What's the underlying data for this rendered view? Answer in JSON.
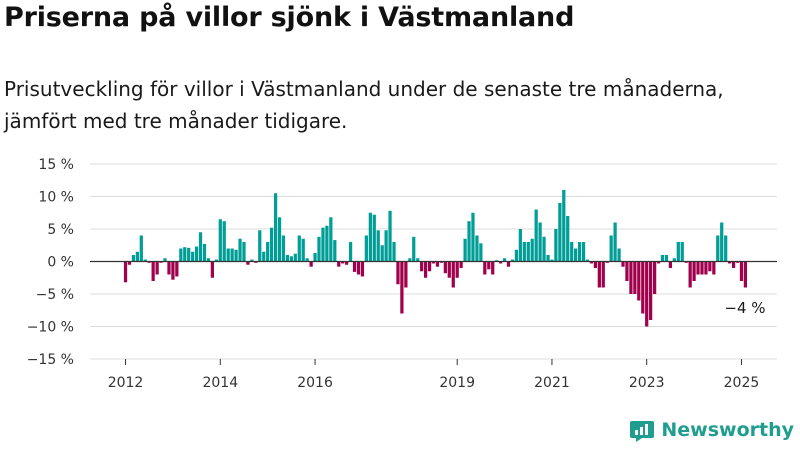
{
  "header": {
    "title": "Priserna på villor sjönk i Västmanland",
    "subtitle": "Prisutveckling för villor i Västmanland under de senaste tre månaderna, jämfört med tre månader tidigare."
  },
  "brand": {
    "name": "Newsworthy",
    "icon": "newsworthy-logo-icon"
  },
  "colors": {
    "positive": "#009e96",
    "negative": "#a0004c",
    "grid": "#dddddd",
    "axis": "#333333"
  },
  "chart_data": {
    "type": "bar",
    "y_ticks": [
      15,
      10,
      5,
      0,
      -5,
      -10,
      -15
    ],
    "y_tick_labels": [
      "15 %",
      "10 %",
      "5 %",
      "0 %",
      "−5 %",
      "−10 %",
      "−15 %"
    ],
    "ylim": [
      -15,
      15
    ],
    "x_ticks": [
      {
        "label": "2012",
        "x": 2012.0
      },
      {
        "label": "2014",
        "x": 2014.0
      },
      {
        "label": "2016",
        "x": 2016.0
      },
      {
        "label": "2019",
        "x": 2019.0
      },
      {
        "label": "2021",
        "x": 2021.0
      },
      {
        "label": "2023",
        "x": 2023.0
      },
      {
        "label": "2025",
        "x": 2025.0
      }
    ],
    "xlim": [
      2011.25,
      2025.75
    ],
    "annotation": "−4 %",
    "bars": [
      [
        2012.0,
        -3.2
      ],
      [
        2012.083,
        -0.5
      ],
      [
        2012.167,
        1.0
      ],
      [
        2012.25,
        1.5
      ],
      [
        2012.333,
        4.0
      ],
      [
        2012.417,
        0.3
      ],
      [
        2012.5,
        -0.2
      ],
      [
        2012.583,
        -3.0
      ],
      [
        2012.667,
        -2.0
      ],
      [
        2012.75,
        -0.2
      ],
      [
        2012.833,
        0.5
      ],
      [
        2012.917,
        -2.0
      ],
      [
        2013.0,
        -2.8
      ],
      [
        2013.083,
        -2.3
      ],
      [
        2013.167,
        2.0
      ],
      [
        2013.25,
        2.2
      ],
      [
        2013.333,
        2.1
      ],
      [
        2013.417,
        1.5
      ],
      [
        2013.5,
        2.3
      ],
      [
        2013.583,
        4.5
      ],
      [
        2013.667,
        2.7
      ],
      [
        2013.75,
        0.5
      ],
      [
        2013.833,
        -2.5
      ],
      [
        2013.917,
        0.3
      ],
      [
        2014.0,
        6.5
      ],
      [
        2014.083,
        6.2
      ],
      [
        2014.167,
        2.0
      ],
      [
        2014.25,
        2.0
      ],
      [
        2014.333,
        1.8
      ],
      [
        2014.417,
        3.5
      ],
      [
        2014.5,
        3.0
      ],
      [
        2014.583,
        -0.5
      ],
      [
        2014.667,
        0.3
      ],
      [
        2014.75,
        -0.2
      ],
      [
        2014.833,
        4.8
      ],
      [
        2014.917,
        1.5
      ],
      [
        2015.0,
        3.0
      ],
      [
        2015.083,
        5.2
      ],
      [
        2015.167,
        10.5
      ],
      [
        2015.25,
        6.8
      ],
      [
        2015.333,
        4.0
      ],
      [
        2015.417,
        1.0
      ],
      [
        2015.5,
        0.8
      ],
      [
        2015.583,
        1.2
      ],
      [
        2015.667,
        4.0
      ],
      [
        2015.75,
        3.5
      ],
      [
        2015.833,
        0.5
      ],
      [
        2015.917,
        -0.8
      ],
      [
        2016.0,
        1.3
      ],
      [
        2016.083,
        3.8
      ],
      [
        2016.167,
        5.2
      ],
      [
        2016.25,
        5.5
      ],
      [
        2016.333,
        6.8
      ],
      [
        2016.417,
        3.3
      ],
      [
        2016.5,
        -0.8
      ],
      [
        2016.583,
        -0.3
      ],
      [
        2016.667,
        -0.5
      ],
      [
        2016.75,
        3.0
      ],
      [
        2016.833,
        -1.6
      ],
      [
        2016.917,
        -2.0
      ],
      [
        2017.0,
        -2.3
      ],
      [
        2017.083,
        4.0
      ],
      [
        2017.167,
        7.5
      ],
      [
        2017.25,
        7.2
      ],
      [
        2017.333,
        4.8
      ],
      [
        2017.417,
        2.5
      ],
      [
        2017.5,
        4.8
      ],
      [
        2017.583,
        7.8
      ],
      [
        2017.667,
        3.0
      ],
      [
        2017.75,
        -3.5
      ],
      [
        2017.833,
        -8.0
      ],
      [
        2017.917,
        -4.0
      ],
      [
        2018.0,
        0.5
      ],
      [
        2018.083,
        3.8
      ],
      [
        2018.167,
        0.5
      ],
      [
        2018.25,
        -1.5
      ],
      [
        2018.333,
        -2.5
      ],
      [
        2018.417,
        -1.5
      ],
      [
        2018.5,
        -0.3
      ],
      [
        2018.583,
        -0.8
      ],
      [
        2018.667,
        -0.2
      ],
      [
        2018.75,
        -1.8
      ],
      [
        2018.833,
        -2.5
      ],
      [
        2018.917,
        -4.0
      ],
      [
        2019.0,
        -2.5
      ],
      [
        2019.083,
        -1.0
      ],
      [
        2019.167,
        3.5
      ],
      [
        2019.25,
        6.2
      ],
      [
        2019.333,
        7.5
      ],
      [
        2019.417,
        4.0
      ],
      [
        2019.5,
        2.8
      ],
      [
        2019.583,
        -2.0
      ],
      [
        2019.667,
        -1.2
      ],
      [
        2019.75,
        -2.0
      ],
      [
        2019.833,
        0.2
      ],
      [
        2019.917,
        -0.3
      ],
      [
        2020.0,
        0.5
      ],
      [
        2020.083,
        -0.8
      ],
      [
        2020.167,
        0.3
      ],
      [
        2020.25,
        1.8
      ],
      [
        2020.333,
        5.0
      ],
      [
        2020.417,
        3.0
      ],
      [
        2020.5,
        3.0
      ],
      [
        2020.583,
        3.5
      ],
      [
        2020.667,
        8.0
      ],
      [
        2020.75,
        6.0
      ],
      [
        2020.833,
        3.8
      ],
      [
        2020.917,
        1.0
      ],
      [
        2021.0,
        0.3
      ],
      [
        2021.083,
        5.0
      ],
      [
        2021.167,
        9.0
      ],
      [
        2021.25,
        11.0
      ],
      [
        2021.333,
        7.0
      ],
      [
        2021.417,
        3.0
      ],
      [
        2021.5,
        2.0
      ],
      [
        2021.583,
        3.0
      ],
      [
        2021.667,
        3.0
      ],
      [
        2021.75,
        0.3
      ],
      [
        2021.833,
        -0.3
      ],
      [
        2021.917,
        -1.0
      ],
      [
        2022.0,
        -4.0
      ],
      [
        2022.083,
        -4.0
      ],
      [
        2022.167,
        -0.2
      ],
      [
        2022.25,
        4.0
      ],
      [
        2022.333,
        6.0
      ],
      [
        2022.417,
        2.0
      ],
      [
        2022.5,
        -0.8
      ],
      [
        2022.583,
        -3.0
      ],
      [
        2022.667,
        -5.0
      ],
      [
        2022.75,
        -5.0
      ],
      [
        2022.833,
        -6.0
      ],
      [
        2022.917,
        -8.0
      ],
      [
        2023.0,
        -10.0
      ],
      [
        2023.083,
        -9.0
      ],
      [
        2023.167,
        -5.0
      ],
      [
        2023.25,
        -0.3
      ],
      [
        2023.333,
        1.0
      ],
      [
        2023.417,
        1.0
      ],
      [
        2023.5,
        -1.0
      ],
      [
        2023.583,
        0.5
      ],
      [
        2023.667,
        3.0
      ],
      [
        2023.75,
        3.0
      ],
      [
        2023.833,
        -0.2
      ],
      [
        2023.917,
        -4.0
      ],
      [
        2024.0,
        -3.0
      ],
      [
        2024.083,
        -2.0
      ],
      [
        2024.167,
        -2.0
      ],
      [
        2024.25,
        -2.0
      ],
      [
        2024.333,
        -1.5
      ],
      [
        2024.417,
        -2.0
      ],
      [
        2024.5,
        4.0
      ],
      [
        2024.583,
        6.0
      ],
      [
        2024.667,
        4.0
      ],
      [
        2024.75,
        -0.3
      ],
      [
        2024.833,
        -1.0
      ],
      [
        2024.917,
        -0.2
      ],
      [
        2025.0,
        -3.0
      ],
      [
        2025.083,
        -4.0
      ]
    ]
  }
}
